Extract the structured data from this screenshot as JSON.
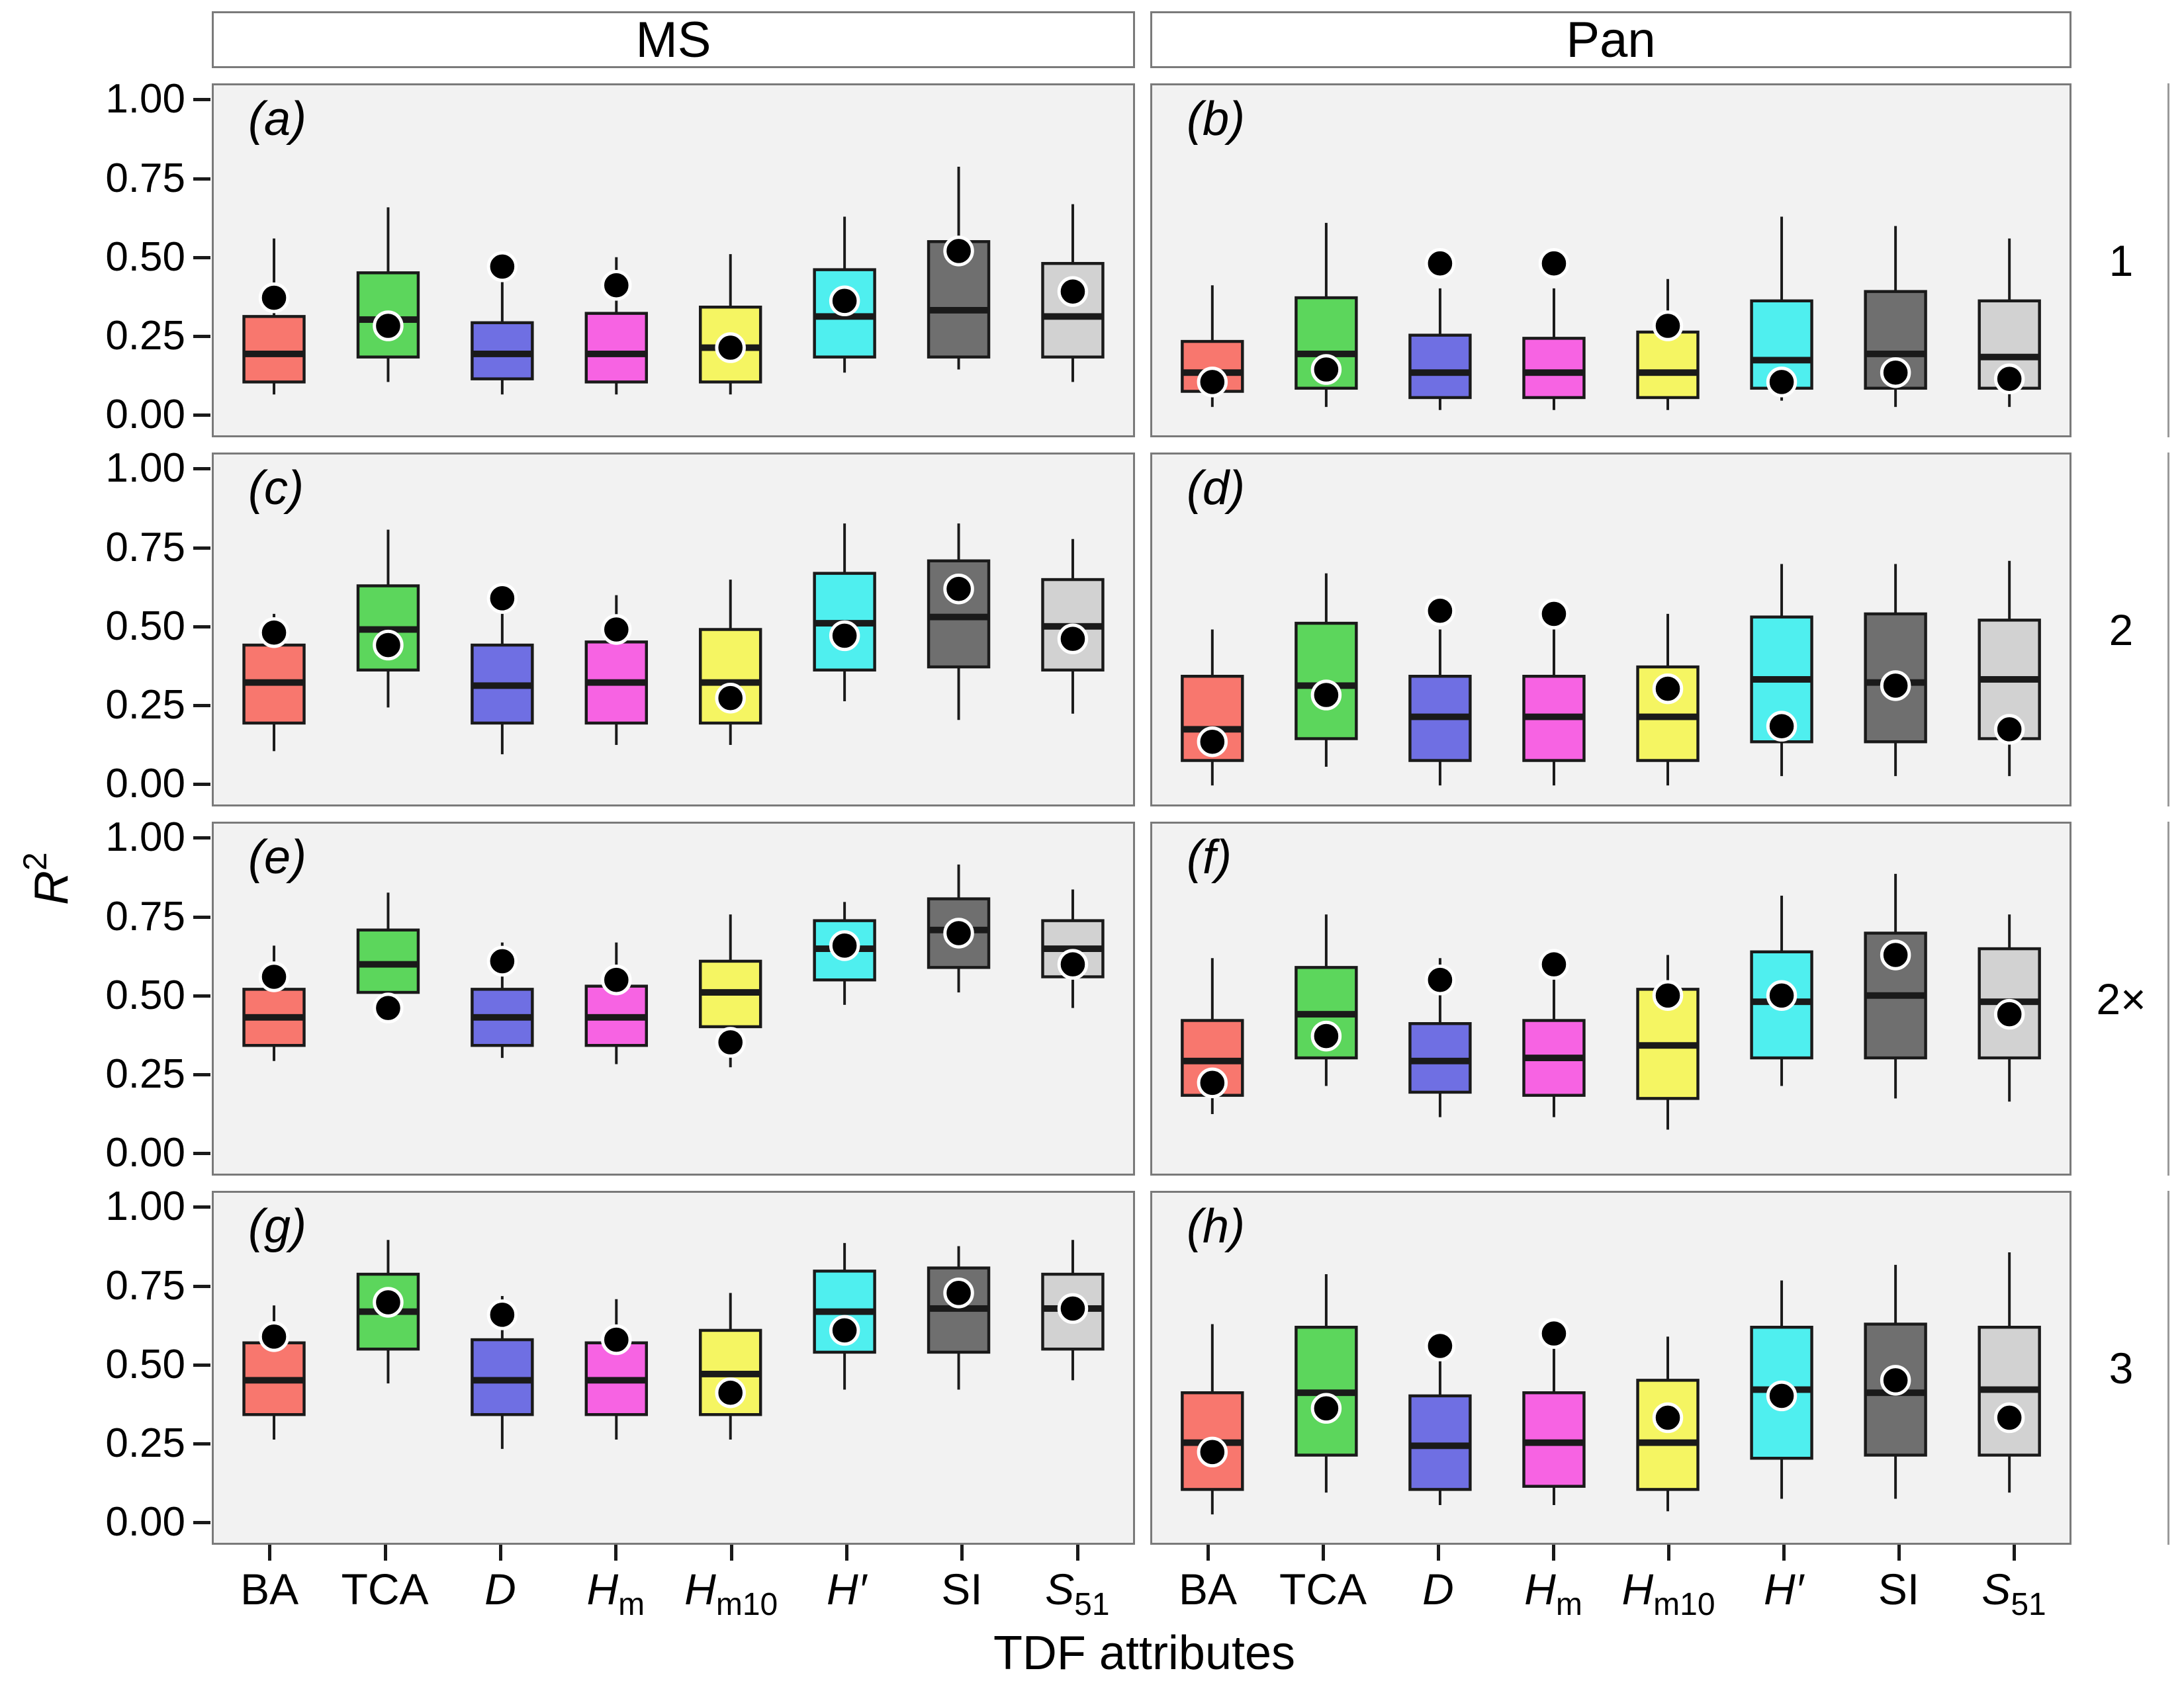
{
  "figure": {
    "col_strips": [
      "MS",
      "Pan"
    ],
    "row_strips": [
      "1",
      "2",
      "2×",
      "3"
    ],
    "x_axis_title": "TDF attributes",
    "y_axis_title_main": "R",
    "y_axis_title_sup": "2"
  },
  "chart_data": {
    "type": "box",
    "title": "",
    "xlabel": "TDF attributes",
    "ylabel": "R^2",
    "ylim": [
      0,
      1
    ],
    "grid": "off",
    "y_ticks": [
      "1.00",
      "0.75",
      "0.50",
      "0.25",
      "0.00"
    ],
    "y_tick_values": [
      1.0,
      0.75,
      0.5,
      0.25,
      0.0
    ],
    "categories": [
      {
        "main": "BA",
        "sub": "",
        "italic": false
      },
      {
        "main": "TCA",
        "sub": "",
        "italic": false
      },
      {
        "main": "D",
        "sub": "",
        "italic": true
      },
      {
        "main": "H",
        "sub": "m",
        "italic": true
      },
      {
        "main": "H",
        "sub": "m10",
        "italic": true
      },
      {
        "main": "H′",
        "sub": "",
        "italic": true
      },
      {
        "main": "SI",
        "sub": "",
        "italic": false
      },
      {
        "main": "S",
        "sub": "51",
        "italic": true
      }
    ],
    "colors": [
      "#F8776E",
      "#5CD65C",
      "#6F6FE3",
      "#F763E3",
      "#F5F562",
      "#4FEFEF",
      "#6F6F6F",
      "#D2D2D2"
    ],
    "style": {
      "panel_bg": "#f2f2f2",
      "panel_border": "#7a7a7a",
      "box_outline": "#1a1a1a",
      "point_fill": "#000000",
      "point_ring": "#ffffff"
    },
    "panels": [
      {
        "label": "(a)",
        "col": "MS",
        "row": "1",
        "boxes": [
          {
            "low": 0.06,
            "q1": 0.1,
            "med": 0.19,
            "q3": 0.31,
            "high": 0.56,
            "point": 0.37
          },
          {
            "low": 0.1,
            "q1": 0.18,
            "med": 0.3,
            "q3": 0.45,
            "high": 0.66,
            "point": 0.28
          },
          {
            "low": 0.06,
            "q1": 0.11,
            "med": 0.19,
            "q3": 0.29,
            "high": 0.42,
            "point": 0.47
          },
          {
            "low": 0.06,
            "q1": 0.1,
            "med": 0.19,
            "q3": 0.32,
            "high": 0.5,
            "point": 0.41
          },
          {
            "low": 0.06,
            "q1": 0.1,
            "med": 0.21,
            "q3": 0.34,
            "high": 0.51,
            "point": 0.21
          },
          {
            "low": 0.13,
            "q1": 0.18,
            "med": 0.31,
            "q3": 0.46,
            "high": 0.63,
            "point": 0.36
          },
          {
            "low": 0.14,
            "q1": 0.18,
            "med": 0.33,
            "q3": 0.55,
            "high": 0.79,
            "point": 0.52
          },
          {
            "low": 0.1,
            "q1": 0.18,
            "med": 0.31,
            "q3": 0.48,
            "high": 0.67,
            "point": 0.39
          }
        ]
      },
      {
        "label": "(b)",
        "col": "Pan",
        "row": "1",
        "boxes": [
          {
            "low": 0.02,
            "q1": 0.07,
            "med": 0.13,
            "q3": 0.23,
            "high": 0.41,
            "point": 0.1
          },
          {
            "low": 0.02,
            "q1": 0.08,
            "med": 0.19,
            "q3": 0.37,
            "high": 0.61,
            "point": 0.14
          },
          {
            "low": 0.01,
            "q1": 0.05,
            "med": 0.13,
            "q3": 0.25,
            "high": 0.4,
            "point": 0.48
          },
          {
            "low": 0.01,
            "q1": 0.05,
            "med": 0.13,
            "q3": 0.24,
            "high": 0.4,
            "point": 0.48
          },
          {
            "low": 0.01,
            "q1": 0.05,
            "med": 0.13,
            "q3": 0.26,
            "high": 0.43,
            "point": 0.28
          },
          {
            "low": 0.04,
            "q1": 0.08,
            "med": 0.17,
            "q3": 0.36,
            "high": 0.63,
            "point": 0.1
          },
          {
            "low": 0.02,
            "q1": 0.08,
            "med": 0.19,
            "q3": 0.39,
            "high": 0.6,
            "point": 0.13
          },
          {
            "low": 0.02,
            "q1": 0.08,
            "med": 0.18,
            "q3": 0.36,
            "high": 0.56,
            "point": 0.11
          }
        ]
      },
      {
        "label": "(c)",
        "col": "MS",
        "row": "2",
        "boxes": [
          {
            "low": 0.1,
            "q1": 0.19,
            "med": 0.32,
            "q3": 0.44,
            "high": 0.54,
            "point": 0.48
          },
          {
            "low": 0.24,
            "q1": 0.36,
            "med": 0.49,
            "q3": 0.63,
            "high": 0.81,
            "point": 0.44
          },
          {
            "low": 0.09,
            "q1": 0.19,
            "med": 0.31,
            "q3": 0.44,
            "high": 0.54,
            "point": 0.59
          },
          {
            "low": 0.12,
            "q1": 0.19,
            "med": 0.32,
            "q3": 0.45,
            "high": 0.6,
            "point": 0.49
          },
          {
            "low": 0.12,
            "q1": 0.19,
            "med": 0.32,
            "q3": 0.49,
            "high": 0.65,
            "point": 0.27
          },
          {
            "low": 0.26,
            "q1": 0.36,
            "med": 0.51,
            "q3": 0.67,
            "high": 0.83,
            "point": 0.47
          },
          {
            "low": 0.2,
            "q1": 0.37,
            "med": 0.53,
            "q3": 0.71,
            "high": 0.83,
            "point": 0.62
          },
          {
            "low": 0.22,
            "q1": 0.36,
            "med": 0.5,
            "q3": 0.65,
            "high": 0.78,
            "point": 0.46
          }
        ]
      },
      {
        "label": "(d)",
        "col": "Pan",
        "row": "2",
        "boxes": [
          {
            "low": -0.01,
            "q1": 0.07,
            "med": 0.17,
            "q3": 0.34,
            "high": 0.49,
            "point": 0.13
          },
          {
            "low": 0.05,
            "q1": 0.14,
            "med": 0.31,
            "q3": 0.51,
            "high": 0.67,
            "point": 0.28
          },
          {
            "low": -0.01,
            "q1": 0.07,
            "med": 0.21,
            "q3": 0.34,
            "high": 0.49,
            "point": 0.55
          },
          {
            "low": -0.01,
            "q1": 0.07,
            "med": 0.21,
            "q3": 0.34,
            "high": 0.49,
            "point": 0.54
          },
          {
            "low": -0.01,
            "q1": 0.07,
            "med": 0.21,
            "q3": 0.37,
            "high": 0.54,
            "point": 0.3
          },
          {
            "low": 0.02,
            "q1": 0.13,
            "med": 0.33,
            "q3": 0.53,
            "high": 0.7,
            "point": 0.18
          },
          {
            "low": 0.02,
            "q1": 0.13,
            "med": 0.32,
            "q3": 0.54,
            "high": 0.7,
            "point": 0.31
          },
          {
            "low": 0.02,
            "q1": 0.14,
            "med": 0.33,
            "q3": 0.52,
            "high": 0.71,
            "point": 0.17
          }
        ]
      },
      {
        "label": "(e)",
        "col": "MS",
        "row": "2×",
        "boxes": [
          {
            "low": 0.29,
            "q1": 0.34,
            "med": 0.43,
            "q3": 0.52,
            "high": 0.66,
            "point": 0.56
          },
          {
            "low": 0.42,
            "q1": 0.51,
            "med": 0.6,
            "q3": 0.71,
            "high": 0.83,
            "point": 0.46
          },
          {
            "low": 0.3,
            "q1": 0.34,
            "med": 0.43,
            "q3": 0.52,
            "high": 0.67,
            "point": 0.61
          },
          {
            "low": 0.28,
            "q1": 0.34,
            "med": 0.43,
            "q3": 0.53,
            "high": 0.67,
            "point": 0.55
          },
          {
            "low": 0.27,
            "q1": 0.4,
            "med": 0.51,
            "q3": 0.61,
            "high": 0.76,
            "point": 0.35
          },
          {
            "low": 0.47,
            "q1": 0.55,
            "med": 0.65,
            "q3": 0.74,
            "high": 0.8,
            "point": 0.66
          },
          {
            "low": 0.51,
            "q1": 0.59,
            "med": 0.71,
            "q3": 0.81,
            "high": 0.92,
            "point": 0.7
          },
          {
            "low": 0.46,
            "q1": 0.56,
            "med": 0.65,
            "q3": 0.74,
            "high": 0.84,
            "point": 0.6
          }
        ]
      },
      {
        "label": "(f)",
        "col": "Pan",
        "row": "2×",
        "boxes": [
          {
            "low": 0.12,
            "q1": 0.18,
            "med": 0.29,
            "q3": 0.42,
            "high": 0.62,
            "point": 0.22
          },
          {
            "low": 0.21,
            "q1": 0.3,
            "med": 0.44,
            "q3": 0.59,
            "high": 0.76,
            "point": 0.37
          },
          {
            "low": 0.11,
            "q1": 0.19,
            "med": 0.29,
            "q3": 0.41,
            "high": 0.62,
            "point": 0.55
          },
          {
            "low": 0.11,
            "q1": 0.18,
            "med": 0.3,
            "q3": 0.42,
            "high": 0.61,
            "point": 0.6
          },
          {
            "low": 0.07,
            "q1": 0.17,
            "med": 0.34,
            "q3": 0.52,
            "high": 0.63,
            "point": 0.5
          },
          {
            "low": 0.21,
            "q1": 0.3,
            "med": 0.48,
            "q3": 0.64,
            "high": 0.82,
            "point": 0.5
          },
          {
            "low": 0.17,
            "q1": 0.3,
            "med": 0.5,
            "q3": 0.7,
            "high": 0.89,
            "point": 0.63
          },
          {
            "low": 0.16,
            "q1": 0.3,
            "med": 0.48,
            "q3": 0.65,
            "high": 0.76,
            "point": 0.44
          }
        ]
      },
      {
        "label": "(g)",
        "col": "MS",
        "row": "3",
        "boxes": [
          {
            "low": 0.26,
            "q1": 0.34,
            "med": 0.45,
            "q3": 0.57,
            "high": 0.69,
            "point": 0.59
          },
          {
            "low": 0.44,
            "q1": 0.55,
            "med": 0.67,
            "q3": 0.79,
            "high": 0.9,
            "point": 0.7
          },
          {
            "low": 0.23,
            "q1": 0.34,
            "med": 0.45,
            "q3": 0.58,
            "high": 0.72,
            "point": 0.66
          },
          {
            "low": 0.26,
            "q1": 0.34,
            "med": 0.45,
            "q3": 0.57,
            "high": 0.71,
            "point": 0.58
          },
          {
            "low": 0.26,
            "q1": 0.34,
            "med": 0.47,
            "q3": 0.61,
            "high": 0.73,
            "point": 0.41
          },
          {
            "low": 0.42,
            "q1": 0.54,
            "med": 0.67,
            "q3": 0.8,
            "high": 0.89,
            "point": 0.61
          },
          {
            "low": 0.42,
            "q1": 0.54,
            "med": 0.68,
            "q3": 0.81,
            "high": 0.88,
            "point": 0.73
          },
          {
            "low": 0.45,
            "q1": 0.55,
            "med": 0.68,
            "q3": 0.79,
            "high": 0.9,
            "point": 0.68
          }
        ]
      },
      {
        "label": "(h)",
        "col": "Pan",
        "row": "3",
        "boxes": [
          {
            "low": 0.02,
            "q1": 0.1,
            "med": 0.25,
            "q3": 0.41,
            "high": 0.63,
            "point": 0.22
          },
          {
            "low": 0.09,
            "q1": 0.21,
            "med": 0.41,
            "q3": 0.62,
            "high": 0.79,
            "point": 0.36
          },
          {
            "low": 0.05,
            "q1": 0.1,
            "med": 0.24,
            "q3": 0.4,
            "high": 0.59,
            "point": 0.56
          },
          {
            "low": 0.05,
            "q1": 0.11,
            "med": 0.25,
            "q3": 0.41,
            "high": 0.57,
            "point": 0.6
          },
          {
            "low": 0.03,
            "q1": 0.1,
            "med": 0.25,
            "q3": 0.45,
            "high": 0.59,
            "point": 0.33
          },
          {
            "low": 0.07,
            "q1": 0.2,
            "med": 0.42,
            "q3": 0.62,
            "high": 0.77,
            "point": 0.4
          },
          {
            "low": 0.07,
            "q1": 0.21,
            "med": 0.41,
            "q3": 0.63,
            "high": 0.82,
            "point": 0.45
          },
          {
            "low": 0.09,
            "q1": 0.21,
            "med": 0.42,
            "q3": 0.62,
            "high": 0.86,
            "point": 0.33
          }
        ]
      }
    ]
  }
}
